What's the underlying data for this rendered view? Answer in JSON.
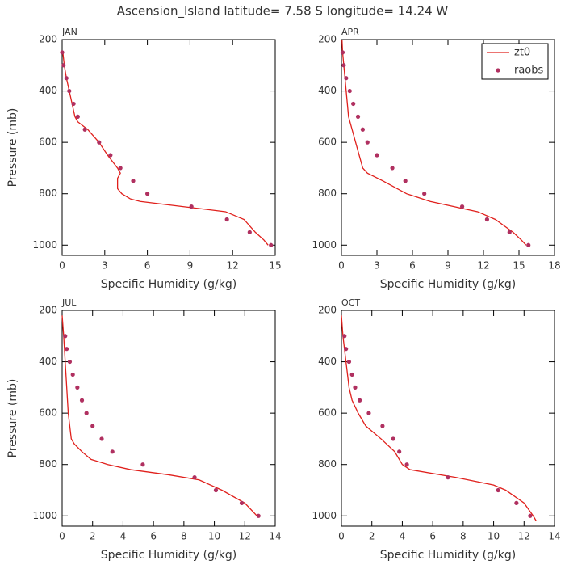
{
  "title": "Ascension_Island  latitude= 7.58 S longitude= 14.24 W",
  "chart_data": [
    {
      "type": "line",
      "title": "JAN",
      "xlabel": "Specific Humidity (g/kg)",
      "ylabel": "Pressure (mb)",
      "xlim": [
        0,
        15
      ],
      "xticks": [
        0,
        3,
        6,
        9,
        12,
        15
      ],
      "ylim": [
        1040,
        200
      ],
      "yticks": [
        200,
        400,
        600,
        800,
        1000
      ],
      "series": [
        {
          "type": "line",
          "color": "#e0201c",
          "x": [
            0.05,
            0.15,
            0.3,
            0.5,
            0.7,
            0.9,
            1.1,
            1.8,
            2.6,
            3.2,
            3.9,
            4.1,
            3.9,
            3.9,
            4.2,
            4.8,
            5.5,
            8.5,
            11.5,
            12.8,
            13.6,
            14.2,
            14.5
          ],
          "y": [
            250,
            300,
            350,
            400,
            450,
            500,
            520,
            550,
            600,
            650,
            700,
            720,
            740,
            780,
            800,
            820,
            830,
            850,
            870,
            900,
            950,
            980,
            1000
          ]
        },
        {
          "type": "scatter",
          "color": "#b03060",
          "x": [
            0.0,
            0.1,
            0.3,
            0.5,
            0.8,
            1.1,
            1.6,
            2.6,
            3.4,
            4.1,
            5.0,
            6.0,
            9.1,
            11.6,
            13.2,
            14.7
          ],
          "y": [
            250,
            300,
            350,
            400,
            450,
            500,
            550,
            600,
            650,
            700,
            750,
            800,
            850,
            900,
            950,
            1000
          ]
        }
      ]
    },
    {
      "type": "line",
      "title": "APR",
      "xlabel": "Specific Humidity (g/kg)",
      "legend": "upper right",
      "xlim": [
        0,
        18
      ],
      "xticks": [
        0,
        3,
        6,
        9,
        12,
        15,
        18
      ],
      "ylim": [
        1040,
        200
      ],
      "yticks": [
        200,
        400,
        600,
        800,
        1000
      ],
      "series": [
        {
          "type": "line",
          "name": "zt0",
          "color": "#e0201c",
          "x": [
            0.05,
            0.1,
            0.2,
            0.4,
            0.6,
            0.9,
            1.2,
            1.5,
            1.8,
            2.2,
            3.5,
            5.5,
            7.5,
            9.5,
            11.5,
            13.0,
            14.5,
            15.2,
            15.6
          ],
          "y": [
            200,
            250,
            300,
            400,
            500,
            550,
            600,
            650,
            700,
            720,
            750,
            800,
            830,
            850,
            870,
            900,
            950,
            980,
            1000
          ]
        },
        {
          "type": "scatter",
          "name": "raobs",
          "color": "#b03060",
          "x": [
            0.1,
            0.2,
            0.4,
            0.7,
            1.0,
            1.4,
            1.8,
            2.2,
            3.0,
            4.3,
            5.4,
            7.0,
            10.2,
            12.3,
            14.2,
            15.8
          ],
          "y": [
            250,
            300,
            350,
            400,
            450,
            500,
            550,
            600,
            650,
            700,
            750,
            800,
            850,
            900,
            950,
            1000
          ]
        }
      ]
    },
    {
      "type": "line",
      "title": "JUL",
      "xlabel": "Specific Humidity (g/kg)",
      "ylabel": "Pressure (mb)",
      "xlim": [
        0,
        14
      ],
      "xticks": [
        0,
        2,
        4,
        6,
        8,
        10,
        12,
        14
      ],
      "ylim": [
        1040,
        200
      ],
      "yticks": [
        200,
        400,
        600,
        800,
        1000
      ],
      "series": [
        {
          "type": "line",
          "color": "#e0201c",
          "x": [
            0.0,
            0.1,
            0.2,
            0.3,
            0.4,
            0.5,
            0.6,
            0.8,
            1.3,
            1.9,
            3.0,
            4.5,
            7.0,
            9.0,
            10.5,
            12.0,
            12.8
          ],
          "y": [
            220,
            300,
            400,
            500,
            600,
            650,
            700,
            720,
            750,
            780,
            800,
            820,
            840,
            860,
            900,
            950,
            1000
          ]
        },
        {
          "type": "scatter",
          "color": "#b03060",
          "x": [
            0.2,
            0.3,
            0.5,
            0.7,
            1.0,
            1.3,
            1.6,
            2.0,
            2.6,
            3.3,
            5.3,
            8.7,
            10.1,
            11.8,
            12.9
          ],
          "y": [
            300,
            350,
            400,
            450,
            500,
            550,
            600,
            650,
            700,
            750,
            800,
            850,
            900,
            950,
            1000
          ]
        }
      ]
    },
    {
      "type": "line",
      "title": "OCT",
      "xlabel": "Specific Humidity (g/kg)",
      "xlim": [
        0,
        14
      ],
      "xticks": [
        0,
        2,
        4,
        6,
        8,
        10,
        12,
        14
      ],
      "ylim": [
        1040,
        200
      ],
      "yticks": [
        200,
        400,
        600,
        800,
        1000
      ],
      "series": [
        {
          "type": "line",
          "color": "#e0201c",
          "x": [
            0.0,
            0.1,
            0.3,
            0.5,
            0.7,
            1.1,
            1.6,
            2.6,
            3.5,
            3.8,
            4.0,
            4.5,
            7.5,
            10.0,
            10.8,
            12.0,
            12.6,
            12.8
          ],
          "y": [
            220,
            300,
            400,
            500,
            550,
            600,
            650,
            700,
            750,
            780,
            800,
            820,
            850,
            880,
            900,
            950,
            1000,
            1020
          ]
        },
        {
          "type": "scatter",
          "color": "#b03060",
          "x": [
            0.2,
            0.3,
            0.5,
            0.7,
            0.9,
            1.2,
            1.8,
            2.7,
            3.4,
            3.8,
            4.3,
            7.0,
            10.3,
            11.5,
            12.4
          ],
          "y": [
            300,
            350,
            400,
            450,
            500,
            550,
            600,
            650,
            700,
            750,
            800,
            850,
            900,
            950,
            1000
          ]
        }
      ]
    }
  ]
}
